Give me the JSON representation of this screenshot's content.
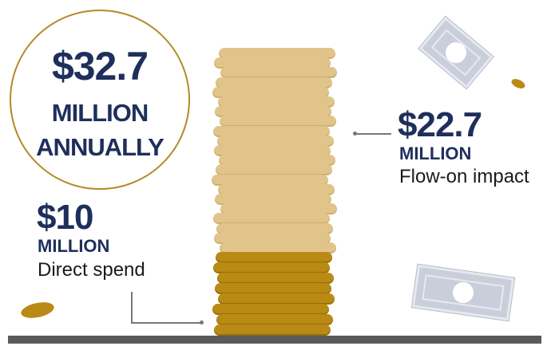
{
  "total": {
    "amount": "$32.7",
    "line1": "MILLION",
    "line2": "ANNUALLY"
  },
  "direct": {
    "amount": "$10",
    "unit": "MILLION",
    "label": "Direct spend"
  },
  "flow_on": {
    "amount": "$22.7",
    "unit": "MILLION",
    "label": "Flow-on impact"
  },
  "colors": {
    "navy": "#1f2f5c",
    "gold": "#b98a14",
    "light_gold": "#e0c48a",
    "circle_border": "#b58a2a",
    "bill": "#c9ceda",
    "ground": "#5a5a5a"
  },
  "icons": [
    "banknote-icon",
    "coin-icon"
  ]
}
